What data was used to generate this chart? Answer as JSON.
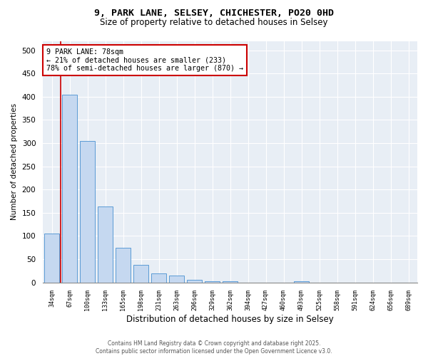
{
  "title_line1": "9, PARK LANE, SELSEY, CHICHESTER, PO20 0HD",
  "title_line2": "Size of property relative to detached houses in Selsey",
  "xlabel": "Distribution of detached houses by size in Selsey",
  "ylabel": "Number of detached properties",
  "categories": [
    "34sqm",
    "67sqm",
    "100sqm",
    "133sqm",
    "165sqm",
    "198sqm",
    "231sqm",
    "263sqm",
    "296sqm",
    "329sqm",
    "362sqm",
    "394sqm",
    "427sqm",
    "460sqm",
    "493sqm",
    "525sqm",
    "558sqm",
    "591sqm",
    "624sqm",
    "656sqm",
    "689sqm"
  ],
  "values": [
    105,
    405,
    305,
    163,
    75,
    38,
    20,
    15,
    5,
    3,
    2,
    0,
    0,
    0,
    2,
    0,
    0,
    0,
    0,
    0,
    0
  ],
  "bar_color": "#c5d8f0",
  "bar_edge_color": "#5b9bd5",
  "vline_x": 0.5,
  "vline_color": "#cc0000",
  "annotation_text": "9 PARK LANE: 78sqm\n← 21% of detached houses are smaller (233)\n78% of semi-detached houses are larger (870) →",
  "annotation_box_color": "#cc0000",
  "ylim": [
    0,
    520
  ],
  "yticks": [
    0,
    50,
    100,
    150,
    200,
    250,
    300,
    350,
    400,
    450,
    500
  ],
  "background_color": "#e8eef5",
  "footer_line1": "Contains HM Land Registry data © Crown copyright and database right 2025.",
  "footer_line2": "Contains public sector information licensed under the Open Government Licence v3.0."
}
